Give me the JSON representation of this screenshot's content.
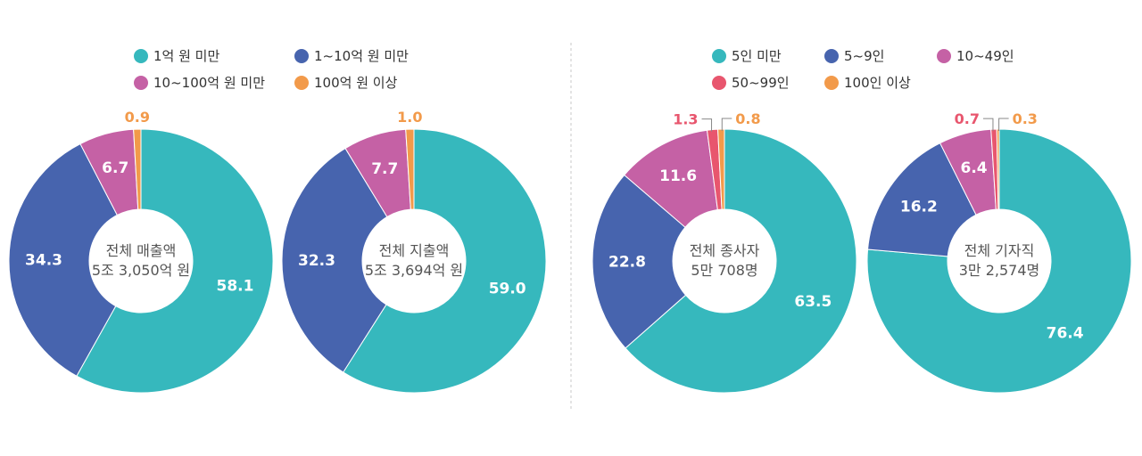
{
  "colors": {
    "teal": "#36b8bd",
    "navy": "#4764ae",
    "magenta": "#c561a5",
    "red": "#e8566e",
    "orange": "#f29a4a",
    "divider": "#c9c9c9"
  },
  "legend_left": {
    "items": [
      {
        "label": "1억 원 미만",
        "color": "#36b8bd"
      },
      {
        "label": "1~10억 원 미만",
        "color": "#4764ae"
      },
      {
        "label": "10~100억 원 미만",
        "color": "#c561a5"
      },
      {
        "label": "100억 원 이상",
        "color": "#f29a4a"
      }
    ]
  },
  "legend_right": {
    "items": [
      {
        "label": "5인 미만",
        "color": "#36b8bd"
      },
      {
        "label": "5~9인",
        "color": "#4764ae"
      },
      {
        "label": "10~49인",
        "color": "#c561a5"
      },
      {
        "label": "50~99인",
        "color": "#e8566e"
      },
      {
        "label": "100인 이상",
        "color": "#f29a4a"
      }
    ]
  },
  "chart_data": [
    {
      "type": "pie",
      "title": "전체 매출액",
      "center_label": [
        "전체 매출액",
        "5조 3,050억 원"
      ],
      "categories": [
        "1억 원 미만",
        "1~10억 원 미만",
        "10~100억 원 미만",
        "100억 원 이상"
      ],
      "values": [
        58.1,
        34.3,
        6.7,
        0.9
      ],
      "value_labels": [
        "58.1",
        "34.3",
        "6.7",
        "0.9"
      ],
      "unit": "%"
    },
    {
      "type": "pie",
      "title": "전체 지출액",
      "center_label": [
        "전체 지출액",
        "5조 3,694억 원"
      ],
      "categories": [
        "1억 원 미만",
        "1~10억 원 미만",
        "10~100억 원 미만",
        "100억 원 이상"
      ],
      "values": [
        59.0,
        32.3,
        7.7,
        1.0
      ],
      "value_labels": [
        "59.0",
        "32.3",
        "7.7",
        "1.0"
      ],
      "unit": "%"
    },
    {
      "type": "pie",
      "title": "전체 종사자",
      "center_label": [
        "전체 종사자",
        "5만 708명"
      ],
      "categories": [
        "5인 미만",
        "5~9인",
        "10~49인",
        "50~99인",
        "100인 이상"
      ],
      "values": [
        63.5,
        22.8,
        11.6,
        1.3,
        0.8
      ],
      "value_labels": [
        "63.5",
        "22.8",
        "11.6",
        "1.3",
        "0.8"
      ],
      "unit": "%"
    },
    {
      "type": "pie",
      "title": "전체 기자직",
      "center_label": [
        "전체 기자직",
        "3만 2,574명"
      ],
      "categories": [
        "5인 미만",
        "5~9인",
        "10~49인",
        "50~99인",
        "100인 이상"
      ],
      "values": [
        76.4,
        16.2,
        6.4,
        0.7,
        0.3
      ],
      "value_labels": [
        "76.4",
        "16.2",
        "6.4",
        "0.7",
        "0.3"
      ],
      "unit": "%"
    }
  ]
}
